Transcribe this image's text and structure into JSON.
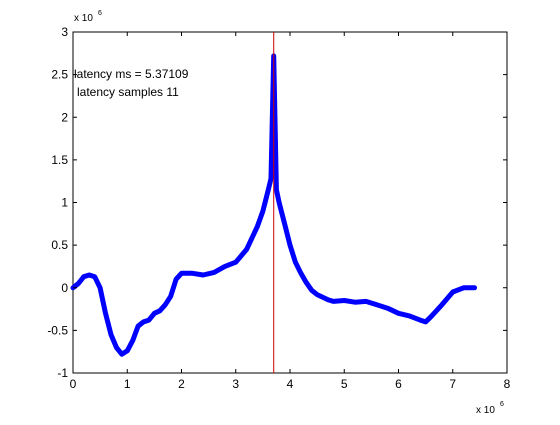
{
  "chart_data": {
    "type": "line",
    "title": "",
    "xlabel": "",
    "ylabel": "",
    "x_multiplier": {
      "base": "x 10",
      "exp": "6"
    },
    "y_multiplier": {
      "base": "x 10",
      "exp": "6"
    },
    "xlim": [
      0,
      8
    ],
    "ylim": [
      -1,
      3
    ],
    "x_ticks": [
      0,
      1,
      2,
      3,
      4,
      5,
      6,
      7,
      8
    ],
    "y_ticks": [
      -1,
      -0.5,
      0,
      0.5,
      1,
      1.5,
      2,
      2.5,
      3
    ],
    "x_tick_labels": [
      "0",
      "1",
      "2",
      "3",
      "4",
      "5",
      "6",
      "7",
      "8"
    ],
    "y_tick_labels": [
      "-1",
      "-0.5",
      "0",
      "0.5",
      "1",
      "1.5",
      "2",
      "2.5",
      "3"
    ],
    "grid": false,
    "series": [
      {
        "color": "#0000ff",
        "x": [
          0,
          0.1,
          0.2,
          0.3,
          0.4,
          0.5,
          0.6,
          0.7,
          0.8,
          0.9,
          1.0,
          1.1,
          1.2,
          1.3,
          1.4,
          1.5,
          1.6,
          1.7,
          1.8,
          1.9,
          2.0,
          2.2,
          2.4,
          2.6,
          2.8,
          3.0,
          3.2,
          3.4,
          3.5,
          3.6,
          3.65,
          3.7,
          3.75,
          3.8,
          3.9,
          4.0,
          4.1,
          4.2,
          4.3,
          4.4,
          4.5,
          4.6,
          4.7,
          4.8,
          5.0,
          5.2,
          5.4,
          5.6,
          5.8,
          6.0,
          6.2,
          6.4,
          6.5,
          6.6,
          6.8,
          7.0,
          7.2,
          7.4
        ],
        "y": [
          0.0,
          0.05,
          0.13,
          0.15,
          0.13,
          0.0,
          -0.3,
          -0.55,
          -0.7,
          -0.78,
          -0.74,
          -0.62,
          -0.45,
          -0.4,
          -0.38,
          -0.3,
          -0.27,
          -0.2,
          -0.1,
          0.1,
          0.17,
          0.17,
          0.15,
          0.18,
          0.25,
          0.3,
          0.45,
          0.72,
          0.9,
          1.15,
          1.28,
          2.72,
          1.15,
          1.0,
          0.75,
          0.5,
          0.3,
          0.17,
          0.06,
          -0.03,
          -0.08,
          -0.11,
          -0.14,
          -0.16,
          -0.15,
          -0.17,
          -0.16,
          -0.2,
          -0.24,
          -0.3,
          -0.33,
          -0.38,
          -0.4,
          -0.34,
          -0.2,
          -0.05,
          0.0,
          0.0
        ]
      }
    ],
    "marker_line": {
      "x": 3.7,
      "color": "#cc0000"
    },
    "annotations": [
      "latency ms = 5.37109",
      "latency samples 11"
    ]
  }
}
